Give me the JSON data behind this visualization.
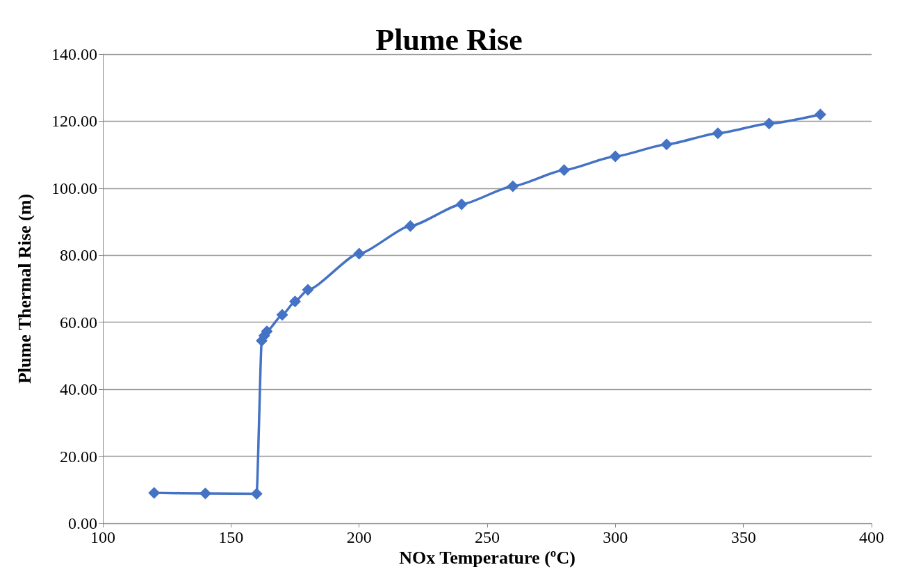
{
  "chart_data": {
    "type": "line",
    "title": "Plume Rise",
    "xlabel": "NOx Temperature (ºC)",
    "ylabel": "Plume Thermal Rise (m)",
    "x": [
      120,
      140,
      160,
      162,
      163,
      164,
      170,
      175,
      180,
      200,
      220,
      240,
      260,
      280,
      300,
      320,
      340,
      360,
      380
    ],
    "series": [
      {
        "color": "#4472c4",
        "values": [
          9.1,
          8.9,
          8.8,
          54.5,
          56,
          57.3,
          62.2,
          66.2,
          69.7,
          80.5,
          88.7,
          95.2,
          100.6,
          105.4,
          109.5,
          113.1,
          116.4,
          119.3,
          122.0
        ]
      }
    ],
    "xlim": [
      100,
      400
    ],
    "xticks": [
      100,
      150,
      200,
      250,
      300,
      350,
      400
    ],
    "ylim": [
      0,
      140
    ],
    "yticks": [
      {
        "value": 0,
        "label": "0.00"
      },
      {
        "value": 20,
        "label": "20.00"
      },
      {
        "value": 40,
        "label": "40.00"
      },
      {
        "value": 60,
        "label": "60.00"
      },
      {
        "value": 80,
        "label": "80.00"
      },
      {
        "value": 100,
        "label": "100.00"
      },
      {
        "value": 120,
        "label": "120.00"
      },
      {
        "value": 140,
        "label": "140.00"
      }
    ],
    "grid": "y",
    "marker": "diamond",
    "line_style": "solid"
  }
}
